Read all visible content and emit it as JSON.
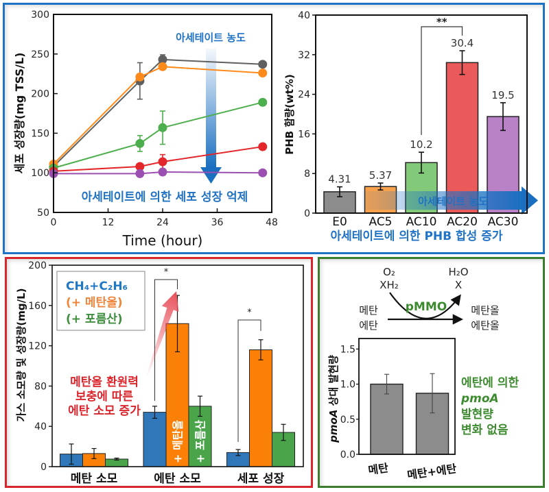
{
  "panel_colors": {
    "top": "#1f73c5",
    "bottom_left": "#d9262c",
    "bottom_right": "#3a7d2c"
  },
  "chart_data": [
    {
      "type": "line",
      "title": "",
      "xlabel": "Time (hour)",
      "ylabel": "세포 성장량(mg TSS/L)",
      "xlim": [
        0,
        48
      ],
      "ylim": [
        50,
        300
      ],
      "xticks": [
        0,
        12,
        24,
        36,
        48
      ],
      "yticks": [
        50,
        100,
        150,
        200,
        250,
        300
      ],
      "grid": false,
      "x": [
        0,
        19,
        24,
        46
      ],
      "series": [
        {
          "color": "#5f5f5f",
          "values": [
            108,
            216,
            243,
            237
          ],
          "errors": [
            0,
            23,
            6,
            2
          ]
        },
        {
          "color": "#ff8a1c",
          "values": [
            111,
            221,
            234,
            226
          ],
          "errors": [
            0,
            3,
            3,
            3
          ]
        },
        {
          "color": "#4cae4c",
          "values": [
            106,
            137,
            157,
            189
          ],
          "errors": [
            0,
            10,
            21,
            4
          ]
        },
        {
          "color": "#e3262a",
          "values": [
            102,
            108,
            114,
            133
          ],
          "errors": [
            0,
            3,
            9,
            3
          ]
        },
        {
          "color": "#9b4fb0",
          "values": [
            99,
            99,
            101,
            100
          ],
          "errors": [
            0,
            2,
            4,
            2
          ]
        }
      ],
      "arrow_label": "아세테이트 농도",
      "caption": "아세테이트에 의한 세포 성장 억제",
      "accent": "#1f72c4"
    },
    {
      "type": "bar",
      "title": "",
      "xlabel": "",
      "ylabel": "PHB 함량(wt%)",
      "ylim": [
        0,
        40
      ],
      "yticks": [
        0,
        8,
        16,
        24,
        32,
        40
      ],
      "grid": false,
      "categories": [
        "E0",
        "AC5",
        "AC10",
        "AC20",
        "AC30"
      ],
      "values": [
        4.31,
        5.37,
        10.2,
        30.4,
        19.5
      ],
      "value_labels": [
        "4.31",
        "5.37",
        "10.2",
        "30.4",
        "19.5"
      ],
      "errors": [
        1.0,
        0.7,
        2.1,
        2.4,
        2.8
      ],
      "colors": [
        "#8c8c8c",
        "#f9a24e",
        "#82c97a",
        "#ea5a5a",
        "#b982c6"
      ],
      "significance": [
        {
          "from": 2,
          "to": 3,
          "label": "**"
        }
      ],
      "arrow_label": "아세테이트 농도",
      "caption": "아세테이트에 의한 PHB 합성 증가",
      "accent": "#1f72c4"
    },
    {
      "type": "bar",
      "title": "",
      "xlabel": "",
      "ylabel": "가스 소모량 및 성장량(mg/L)",
      "ylim": [
        0,
        200
      ],
      "yticks": [
        0,
        40,
        80,
        120,
        160,
        200
      ],
      "grid": false,
      "categories": [
        "메탄 소모",
        "에탄 소모",
        "세포 성장"
      ],
      "series": [
        {
          "name": "CH₄+C₂H₆",
          "color": "#2f77b8",
          "legend_color": "#1f77c4",
          "values": [
            12.5,
            54,
            14
          ],
          "errors": [
            10,
            6,
            3
          ],
          "bar_label": ""
        },
        {
          "name": "(+ 메탄올)",
          "color": "#fb8007",
          "legend_color": "#f0843a",
          "values": [
            13,
            142,
            116
          ],
          "errors": [
            5,
            28,
            10
          ],
          "bar_label": "+ 메탄올"
        },
        {
          "name": "(+ 포름산)",
          "color": "#4aa54a",
          "legend_color": "#3e8e3e",
          "values": [
            7.5,
            60,
            34
          ],
          "errors": [
            1,
            10,
            8
          ],
          "bar_label": "+ 포름산"
        }
      ],
      "legend_position": "top-left",
      "significance": [
        {
          "category": 1,
          "pair": [
            0,
            1
          ],
          "label": "*"
        },
        {
          "category": 2,
          "pair": [
            0,
            1
          ],
          "label": "*"
        }
      ],
      "annotation": [
        "메탄올 환원력",
        "보충에 따른",
        "에탄 소모 증가"
      ],
      "annotation_color": "#d9262c"
    },
    {
      "type": "bar",
      "title": "",
      "xlabel": "",
      "ylabel_italic": "pmoA",
      "ylabel": " 상대 발현량",
      "ylim": [
        0,
        1.65
      ],
      "yticks": [
        0.0,
        0.5,
        1.0,
        1.5
      ],
      "ytick_labels": [
        "0.0",
        "0.5",
        "1.0",
        "1.5"
      ],
      "grid": false,
      "categories": [
        "메탄",
        "메탄+에탄"
      ],
      "values": [
        1.0,
        0.87
      ],
      "errors": [
        0.14,
        0.28
      ],
      "color": "#8c8c8c",
      "annotation": [
        {
          "text": "에탄에 의한",
          "italic": false
        },
        {
          "text": "pmoA",
          "italic": true
        },
        {
          "text": "발현량",
          "italic": false
        },
        {
          "text": "변화 없음",
          "italic": false
        }
      ],
      "annotation_color": "#3d8b2f"
    }
  ],
  "diagram": {
    "substrates": [
      "메탄",
      "에탄"
    ],
    "products": [
      "메탄올",
      "에탄올"
    ],
    "cosubstrates": [
      "O₂",
      "XH₂"
    ],
    "coproducts": [
      "H₂O",
      "X"
    ],
    "enzyme": "pMMO",
    "enzyme_color": "#3d8b2f"
  }
}
